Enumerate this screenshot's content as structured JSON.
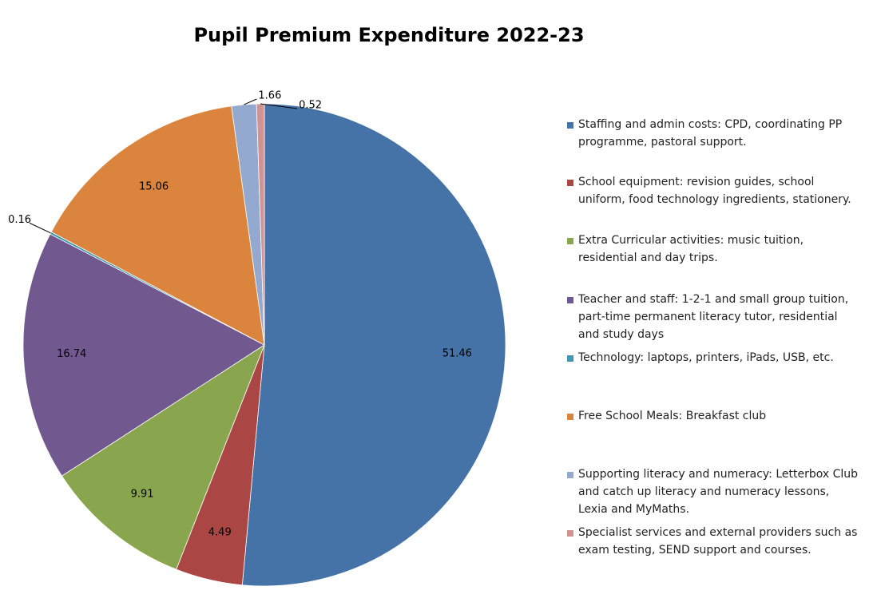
{
  "chart_data": {
    "type": "pie",
    "title": "Pupil Premium Expenditure 2022-23",
    "categories": [
      "Staffing and admin costs: CPD, coordinating PP programme, pastoral support.",
      "School equipment: revision guides, school uniform, food technology ingredients, stationery.",
      "Extra Curricular activities: music tuition, residential and day trips.",
      "Teacher and staff: 1-2-1 and small group tuition, part-time permanent literacy tutor, residential and study days",
      "Technology: laptops, printers, iPads, USB, etc.",
      "Free School Meals: Breakfast club",
      "Supporting literacy and numeracy: Letterbox Club and catch up literacy and numeracy lessons, Lexia and MyMaths.",
      "Specialist services and external providers such as exam testing, SEND support and courses."
    ],
    "values": [
      51.46,
      4.49,
      9.91,
      16.74,
      0.16,
      15.06,
      1.66,
      0.52
    ],
    "colors": [
      "#4572a7",
      "#aa4643",
      "#89a54e",
      "#71588f",
      "#4198af",
      "#db843d",
      "#93a9cf",
      "#d19392"
    ],
    "legend": "right"
  }
}
